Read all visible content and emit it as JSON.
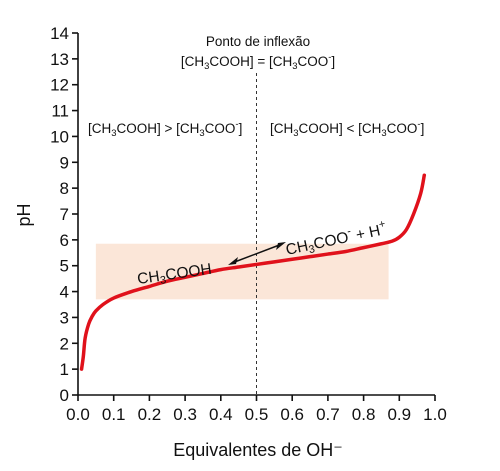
{
  "chart_data": {
    "type": "line",
    "title": "",
    "xlabel": "Equivalentes de OH⁻",
    "ylabel": "pH",
    "xlim": [
      0,
      1.0
    ],
    "ylim": [
      0,
      14
    ],
    "x_ticks": [
      "0.0",
      "0.1",
      "0.2",
      "0.3",
      "0.4",
      "0.5",
      "0.6",
      "0.7",
      "0.8",
      "0.9",
      "1.0"
    ],
    "y_ticks": [
      "0",
      "1",
      "2",
      "3",
      "4",
      "5",
      "6",
      "7",
      "8",
      "9",
      "10",
      "11",
      "12",
      "13",
      "14"
    ],
    "grid": false,
    "series": [
      {
        "color": "#e0111b",
        "x": [
          0.01,
          0.015,
          0.02,
          0.03,
          0.04,
          0.05,
          0.07,
          0.1,
          0.15,
          0.2,
          0.25,
          0.3,
          0.35,
          0.4,
          0.45,
          0.5,
          0.55,
          0.6,
          0.65,
          0.7,
          0.75,
          0.8,
          0.85,
          0.88,
          0.9,
          0.92,
          0.94,
          0.96,
          0.97
        ],
        "y": [
          1.0,
          1.5,
          2.2,
          2.75,
          3.05,
          3.25,
          3.5,
          3.75,
          4.0,
          4.2,
          4.4,
          4.55,
          4.7,
          4.85,
          4.95,
          5.05,
          5.15,
          5.25,
          5.35,
          5.45,
          5.55,
          5.7,
          5.85,
          5.95,
          6.1,
          6.4,
          7.0,
          7.8,
          8.5
        ]
      }
    ],
    "buffer_region": {
      "x": [
        0.05,
        0.87
      ],
      "y": [
        3.7,
        5.85
      ],
      "color": "#fbe6d8"
    },
    "inflection_line": {
      "x": 0.5,
      "style": "dashed"
    },
    "annotations": {
      "inflection_title": "Ponto de inflexão",
      "inflection_eq": "[CH3COOH] = [CH3COO-]",
      "left_region": "[CH3COOH] > [CH3COO-]",
      "right_region": "[CH3COOH] < [CH3COO-]",
      "acid": "CH3COOH",
      "products": "CH3COO- + H+"
    }
  }
}
